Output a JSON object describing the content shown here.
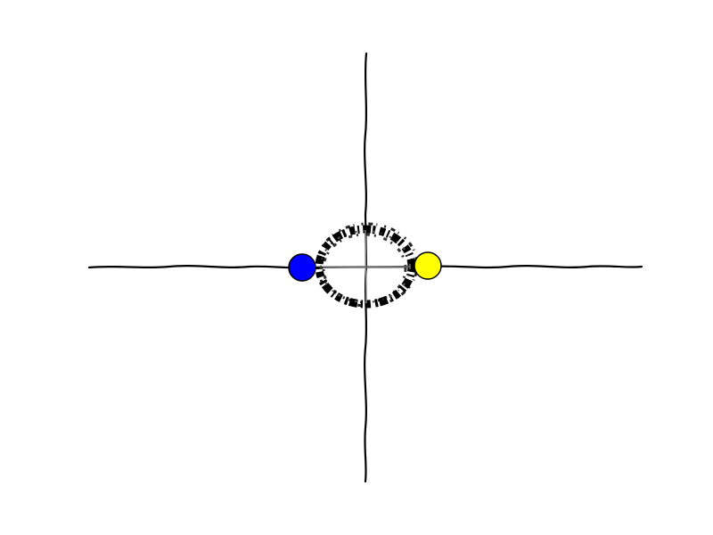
{
  "diagram": {
    "kind": "axes-with-orbit-loop",
    "colors": {
      "background": "#ffffff",
      "axis": "#000000",
      "orbit": "#000000",
      "left_node": "#0000ff",
      "right_node": "#ffff00",
      "node_outline": "#000000"
    },
    "nodes": [
      {
        "name": "left-node",
        "color_key": "left_node"
      },
      {
        "name": "right-node",
        "color_key": "right_node"
      }
    ]
  }
}
